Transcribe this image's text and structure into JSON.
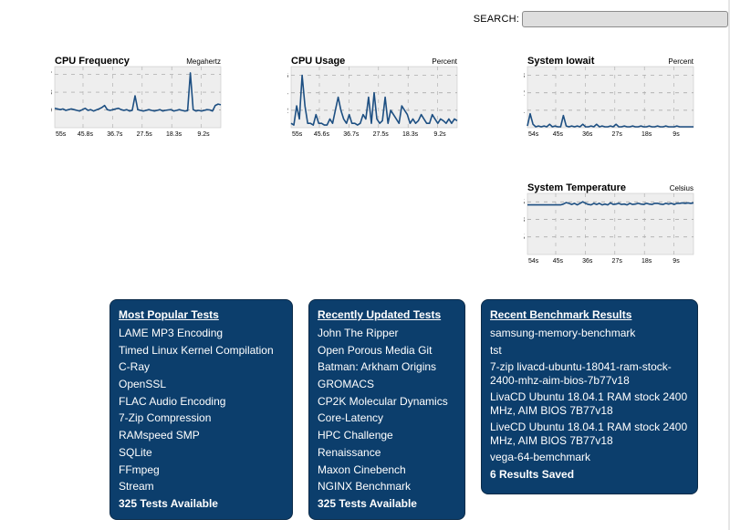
{
  "search": {
    "label": "SEARCH:",
    "value": "",
    "placeholder": ""
  },
  "chart_data": [
    {
      "type": "line",
      "title": "CPU Frequency",
      "unit": "Megahertz",
      "yticks": [
        1279,
        2558,
        3837
      ],
      "ylim": [
        0,
        4400
      ],
      "xticks": [
        "55s",
        "45.8s",
        "36.7s",
        "27.5s",
        "18.3s",
        "9.2s"
      ],
      "x": [
        0,
        1,
        2,
        3,
        4,
        5,
        6,
        7,
        8,
        9,
        10,
        11,
        12,
        13,
        14,
        15,
        16,
        17,
        18,
        19,
        20,
        21,
        22,
        23,
        24,
        25,
        26,
        27,
        28,
        29,
        30,
        31,
        32,
        33,
        34,
        35,
        36,
        37,
        38,
        39,
        40,
        41,
        42,
        43,
        44,
        45,
        46,
        47,
        48,
        49,
        50,
        51,
        52,
        53,
        54,
        55,
        56,
        57,
        58,
        59,
        60
      ],
      "values": [
        1400,
        1350,
        1300,
        1350,
        1250,
        1300,
        1350,
        1300,
        1250,
        1200,
        1300,
        1400,
        1250,
        1300,
        1200,
        1280,
        1350,
        1450,
        1600,
        1300,
        1250,
        1300,
        1350,
        1400,
        1300,
        1250,
        1300,
        1200,
        1250,
        2300,
        1300,
        1250,
        1200,
        1250,
        1300,
        1250,
        1200,
        1250,
        1300,
        1200,
        1250,
        1280,
        1300,
        1200,
        1250,
        1300,
        1250,
        1200,
        1230,
        3950,
        1300,
        1200,
        1250,
        1200,
        1250,
        1300,
        1280,
        1200,
        1600,
        1700,
        1650
      ]
    },
    {
      "type": "line",
      "title": "CPU Usage",
      "unit": "Percent",
      "yticks": [
        2,
        4,
        6
      ],
      "ylim": [
        0,
        7
      ],
      "xticks": [
        "55s",
        "45.6s",
        "36.7s",
        "27.5s",
        "18.3s",
        "9.2s"
      ],
      "x": [
        0,
        1,
        2,
        3,
        4,
        5,
        6,
        7,
        8,
        9,
        10,
        11,
        12,
        13,
        14,
        15,
        16,
        17,
        18,
        19,
        20,
        21,
        22,
        23,
        24,
        25,
        26,
        27,
        28,
        29,
        30,
        31,
        32,
        33,
        34,
        35,
        36,
        37,
        38,
        39,
        40,
        41,
        42,
        43,
        44,
        45,
        46,
        47,
        48,
        49,
        50,
        51,
        52,
        53,
        54,
        55,
        56,
        57,
        58,
        59,
        60
      ],
      "values": [
        0.5,
        0.3,
        2.5,
        1.0,
        6.0,
        2.5,
        0.5,
        0.5,
        0.3,
        1.5,
        0.5,
        0.5,
        0.3,
        0.3,
        1.0,
        0.5,
        2.0,
        3.5,
        2.0,
        1.0,
        0.5,
        1.5,
        0.5,
        0.5,
        0.3,
        0.5,
        1.5,
        1.0,
        3.5,
        0.5,
        4.0,
        1.0,
        0.5,
        0.8,
        3.5,
        0.5,
        2.0,
        1.5,
        1.0,
        0.5,
        2.5,
        2.0,
        1.5,
        0.5,
        1.0,
        0.5,
        0.8,
        1.5,
        1.0,
        0.5,
        0.5,
        1.5,
        1.0,
        0.5,
        1.0,
        0.8,
        0.5,
        1.0,
        0.5,
        1.0,
        0.8
      ]
    },
    {
      "type": "line",
      "title": "System Iowait",
      "unit": "Percent",
      "yticks": [
        1,
        2,
        3
      ],
      "ylim": [
        0,
        3.5
      ],
      "xticks": [
        "54s",
        "45s",
        "36s",
        "27s",
        "18s",
        "9s"
      ],
      "x": [
        0,
        1,
        2,
        3,
        4,
        5,
        6,
        7,
        8,
        9,
        10,
        11,
        12,
        13,
        14,
        15,
        16,
        17,
        18,
        19,
        20,
        21,
        22,
        23,
        24,
        25,
        26,
        27,
        28,
        29,
        30,
        31,
        32,
        33,
        34,
        35,
        36,
        37,
        38,
        39,
        40,
        41,
        42,
        43,
        44,
        45,
        46,
        47,
        48,
        49,
        50,
        51,
        52,
        53,
        54,
        55,
        56,
        57,
        58,
        59,
        60
      ],
      "values": [
        0.1,
        0.8,
        0.2,
        0.05,
        0.1,
        0.05,
        0.1,
        0.05,
        0.2,
        0.05,
        0.1,
        0.05,
        0.05,
        0.7,
        0.1,
        0.05,
        0.1,
        0.05,
        0.1,
        0.05,
        0.2,
        0.05,
        0.05,
        0.1,
        0.05,
        0.2,
        0.05,
        0.1,
        0.05,
        0.05,
        0.1,
        0.05,
        0.2,
        0.05,
        0.05,
        0.1,
        0.05,
        0.05,
        0.1,
        0.05,
        0.05,
        0.1,
        0.05,
        0.05,
        0.1,
        0.05,
        0.05,
        0.1,
        0.05,
        0.05,
        0.1,
        0.05,
        0.05,
        0.05,
        0.1,
        0.05,
        0.05,
        0.05,
        0.05,
        0.05,
        0.05
      ]
    },
    {
      "type": "line",
      "title": "System Temperature",
      "unit": "Celsius",
      "yticks": [
        11.5,
        23,
        34.5
      ],
      "ylim": [
        0,
        40
      ],
      "xticks": [
        "54s",
        "45s",
        "36s",
        "27s",
        "18s",
        "9s"
      ],
      "x": [
        0,
        1,
        2,
        3,
        4,
        5,
        6,
        7,
        8,
        9,
        10,
        11,
        12,
        13,
        14,
        15,
        16,
        17,
        18,
        19,
        20,
        21,
        22,
        23,
        24,
        25,
        26,
        27,
        28,
        29,
        30,
        31,
        32,
        33,
        34,
        35,
        36,
        37,
        38,
        39,
        40,
        41,
        42,
        43,
        44,
        45,
        46,
        47,
        48,
        49,
        50,
        51,
        52,
        53,
        54,
        55,
        56,
        57,
        58,
        59,
        60
      ],
      "values": [
        32.5,
        32.5,
        32.5,
        32.5,
        32.5,
        32.5,
        32.5,
        32.5,
        32.5,
        32.5,
        32.5,
        32.5,
        32.5,
        33.0,
        34.0,
        33.5,
        32.8,
        33.5,
        32.5,
        33.5,
        34.5,
        33.5,
        32.8,
        32.5,
        33.5,
        32.8,
        33.5,
        32.5,
        33.0,
        32.5,
        33.8,
        32.8,
        33.0,
        33.5,
        32.8,
        33.0,
        32.5,
        33.5,
        32.8,
        33.0,
        33.5,
        33.0,
        32.8,
        33.5,
        33.0,
        32.8,
        33.5,
        33.5,
        33.0,
        32.8,
        33.5,
        33.0,
        33.5,
        32.8,
        33.5,
        33.5,
        33.8,
        33.5,
        33.8,
        33.5,
        33.8
      ]
    }
  ],
  "panels": {
    "popular": {
      "title": "Most Popular Tests",
      "items": [
        "LAME MP3 Encoding",
        "Timed Linux Kernel Compilation",
        "C-Ray",
        "OpenSSL",
        "FLAC Audio Encoding",
        "7-Zip Compression",
        "RAMspeed SMP",
        "SQLite",
        "FFmpeg",
        "Stream"
      ],
      "total": "325 Tests Available"
    },
    "updated": {
      "title": "Recently Updated Tests",
      "items": [
        "John The Ripper",
        "Open Porous Media Git",
        "Batman: Arkham Origins",
        "GROMACS",
        "CP2K Molecular Dynamics",
        "Core-Latency",
        "HPC Challenge",
        "Renaissance",
        "Maxon Cinebench",
        "NGINX Benchmark"
      ],
      "total": "325 Tests Available"
    },
    "results": {
      "title": "Recent Benchmark Results",
      "items": [
        "samsung-memory-benchmark",
        "tst",
        "7-zip livacd-ubuntu-18041-ram-stock-2400-mhz-aim-bios-7b77v18",
        "LivaCD Ubuntu 18.04.1 RAM stock 2400 MHz, AIM BIOS 7B77v18",
        "LiveCD Ubuntu 18.04.1 RAM stock 2400 MHz, AIM BIOS 7B77v18",
        "vega-64-bemchmark"
      ],
      "total": "6 Results Saved"
    }
  }
}
